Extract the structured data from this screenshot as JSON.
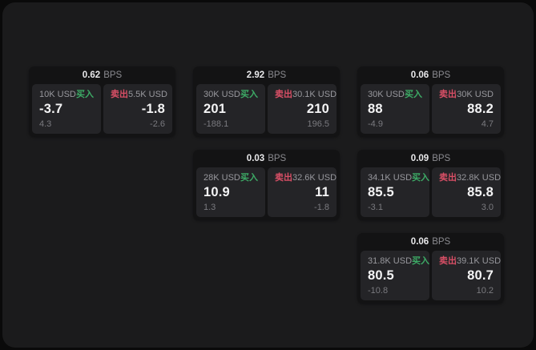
{
  "labels": {
    "buy": "买入",
    "sell": "卖出",
    "bps_unit": "BPS"
  },
  "colors": {
    "page_bg": "#0a0a0a",
    "window_bg": "#1b1b1c",
    "card_bg": "#131314",
    "panel_bg": "#242427",
    "buy_green": "#3dab66",
    "sell_red": "#d94f66"
  },
  "cards": [
    {
      "bps": "0.62",
      "buy": {
        "size": "10K USD",
        "price": "-3.7",
        "secondary": "4.3"
      },
      "sell": {
        "size": "5.5K USD",
        "price": "-1.8",
        "secondary": "-2.6"
      }
    },
    {
      "bps": "2.92",
      "buy": {
        "size": "30K USD",
        "price": "201",
        "secondary": "-188.1"
      },
      "sell": {
        "size": "30.1K USD",
        "price": "210",
        "secondary": "196.5"
      }
    },
    {
      "bps": "0.06",
      "buy": {
        "size": "30K USD",
        "price": "88",
        "secondary": "-4.9"
      },
      "sell": {
        "size": "30K USD",
        "price": "88.2",
        "secondary": "4.7"
      }
    },
    {
      "bps": "0.03",
      "buy": {
        "size": "28K USD",
        "price": "10.9",
        "secondary": "1.3"
      },
      "sell": {
        "size": "32.6K USD",
        "price": "11",
        "secondary": "-1.8"
      }
    },
    {
      "bps": "0.09",
      "buy": {
        "size": "34.1K USD",
        "price": "85.5",
        "secondary": "-3.1"
      },
      "sell": {
        "size": "32.8K USD",
        "price": "85.8",
        "secondary": "3.0"
      }
    },
    {
      "bps": "0.06",
      "buy": {
        "size": "31.8K USD",
        "price": "80.5",
        "secondary": "-10.8"
      },
      "sell": {
        "size": "39.1K USD",
        "price": "80.7",
        "secondary": "10.2"
      }
    }
  ]
}
